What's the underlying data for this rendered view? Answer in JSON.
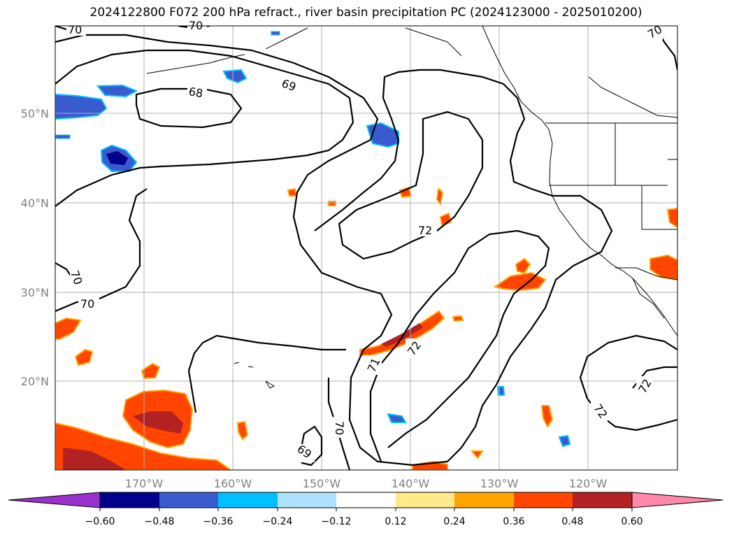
{
  "title": "2024122800 F072 200 hPa refract., river basin precipitation PC (2024123000 - 2025010200)",
  "map": {
    "lat_labels": [
      "50°N",
      "40°N",
      "30°N",
      "20°N"
    ],
    "lon_labels": [
      "170°W",
      "160°W",
      "150°W",
      "140°W",
      "130°W",
      "120°W"
    ],
    "contour_labels": [
      "70",
      "70",
      "68",
      "69",
      "70",
      "70",
      "72",
      "70",
      "71",
      "72",
      "70",
      "69",
      "72",
      "72"
    ]
  },
  "colorbar": {
    "ticks": [
      "−0.60",
      "−0.48",
      "−0.36",
      "−0.24",
      "−0.12",
      "0.12",
      "0.24",
      "0.36",
      "0.48",
      "0.60"
    ],
    "colors": [
      "#9932cc",
      "#00008b",
      "#3a5bd0",
      "#00bfff",
      "#aee2fa",
      "#ffffff",
      "#ffe98a",
      "#ffa500",
      "#ff4500",
      "#b22222",
      "#ff88aa"
    ]
  }
}
